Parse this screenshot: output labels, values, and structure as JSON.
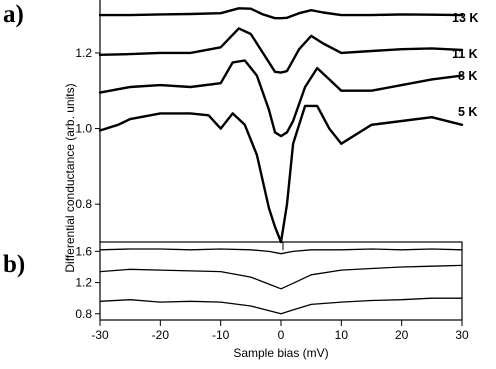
{
  "chart_data": [
    {
      "panel": "a)",
      "type": "line",
      "ylabel": "Differential conductance (arb. units)",
      "xlim": [
        -30,
        30
      ],
      "ylim": [
        0.7,
        1.34
      ],
      "yticks": [
        0.8,
        1.0,
        1.2
      ],
      "ytick_labels": [
        "0.8",
        "1.0",
        "1.2"
      ],
      "line_color": "#000000",
      "series": [
        {
          "name": "13 K",
          "x": [
            -30,
            -25,
            -20,
            -15,
            -10,
            -7,
            -5,
            -3,
            -1,
            0,
            1,
            3,
            5,
            7,
            10,
            15,
            20,
            25,
            30
          ],
          "y": [
            1.3,
            1.3,
            1.302,
            1.303,
            1.305,
            1.318,
            1.317,
            1.302,
            1.292,
            1.292,
            1.293,
            1.305,
            1.313,
            1.307,
            1.3,
            1.3,
            1.302,
            1.301,
            1.3
          ]
        },
        {
          "name": "11 K",
          "x": [
            -30,
            -25,
            -20,
            -15,
            -10,
            -7,
            -5,
            -3,
            -1,
            0,
            1,
            3,
            5,
            7,
            10,
            15,
            20,
            25,
            30
          ],
          "y": [
            1.195,
            1.197,
            1.2,
            1.2,
            1.215,
            1.265,
            1.25,
            1.2,
            1.15,
            1.148,
            1.152,
            1.21,
            1.245,
            1.225,
            1.2,
            1.205,
            1.21,
            1.212,
            1.208
          ]
        },
        {
          "name": "8 K",
          "x": [
            -30,
            -25,
            -20,
            -15,
            -10,
            -8,
            -6,
            -4,
            -2,
            -1,
            0,
            1,
            2,
            4,
            6,
            8,
            10,
            15,
            20,
            25,
            30
          ],
          "y": [
            1.095,
            1.11,
            1.115,
            1.11,
            1.12,
            1.175,
            1.18,
            1.14,
            1.05,
            0.99,
            0.98,
            0.99,
            1.02,
            1.11,
            1.16,
            1.13,
            1.1,
            1.1,
            1.115,
            1.13,
            1.14
          ]
        },
        {
          "name": "5 K",
          "x": [
            -30,
            -27,
            -25,
            -20,
            -15,
            -12,
            -10,
            -8,
            -6,
            -4,
            -2,
            -1,
            0,
            1,
            2,
            4,
            6,
            8,
            10,
            15,
            20,
            25,
            30
          ],
          "y": [
            0.995,
            1.01,
            1.025,
            1.04,
            1.04,
            1.035,
            1.0,
            1.04,
            1.01,
            0.93,
            0.79,
            0.74,
            0.7,
            0.8,
            0.96,
            1.06,
            1.06,
            1.0,
            0.96,
            1.01,
            1.02,
            1.03,
            1.01
          ]
        }
      ],
      "annotations": [
        "13 K",
        "11 K",
        "8 K",
        "5 K"
      ]
    },
    {
      "panel": "b)",
      "type": "line",
      "xlabel": "Sample bias (mV)",
      "xlim": [
        -30,
        30
      ],
      "ylim": [
        0.72,
        1.72
      ],
      "xticks": [
        -30,
        -20,
        -10,
        0,
        10,
        20,
        30
      ],
      "xtick_labels": [
        "-30",
        "-20",
        "-10",
        "0",
        "10",
        "20",
        "30"
      ],
      "yticks": [
        0.8,
        1.2,
        1.6
      ],
      "ytick_labels": [
        "0.8",
        "1.2",
        "1.6"
      ],
      "line_color": "#000000",
      "series": [
        {
          "x": [
            -30,
            -25,
            -20,
            -15,
            -10,
            -5,
            -2,
            0,
            2,
            5,
            10,
            15,
            20,
            25,
            30
          ],
          "y": [
            1.62,
            1.63,
            1.63,
            1.62,
            1.63,
            1.62,
            1.6,
            1.57,
            1.6,
            1.62,
            1.62,
            1.63,
            1.62,
            1.63,
            1.62
          ]
        },
        {
          "x": [
            -30,
            -25,
            -20,
            -15,
            -10,
            -5,
            -2,
            0,
            2,
            5,
            10,
            15,
            20,
            25,
            30
          ],
          "y": [
            1.34,
            1.37,
            1.36,
            1.35,
            1.34,
            1.27,
            1.18,
            1.12,
            1.19,
            1.3,
            1.36,
            1.38,
            1.4,
            1.41,
            1.42
          ]
        },
        {
          "x": [
            -30,
            -25,
            -20,
            -15,
            -10,
            -5,
            -2,
            0,
            2,
            5,
            10,
            15,
            20,
            25,
            30
          ],
          "y": [
            0.96,
            0.98,
            0.95,
            0.96,
            0.95,
            0.9,
            0.84,
            0.8,
            0.85,
            0.92,
            0.95,
            0.97,
            0.98,
            1.0,
            1.0
          ]
        }
      ]
    }
  ]
}
